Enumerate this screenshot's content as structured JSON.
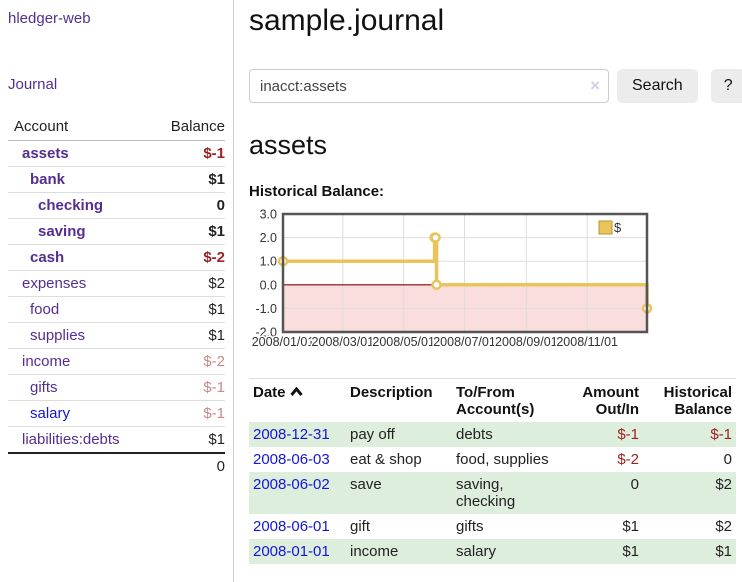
{
  "app": {
    "title": "hledger-web"
  },
  "sidebar": {
    "journal_link": "Journal",
    "accounts": {
      "account_header": "Account",
      "balance_header": "Balance",
      "rows": [
        {
          "name": "assets",
          "depth": 1,
          "balance": "$-1",
          "bold": true,
          "neg": "strong",
          "link": "purple"
        },
        {
          "name": "bank",
          "depth": 2,
          "balance": "$1",
          "bold": true,
          "neg": "none",
          "link": "purple"
        },
        {
          "name": "checking",
          "depth": 3,
          "balance": "0",
          "bold": true,
          "neg": "none",
          "link": "purple"
        },
        {
          "name": "saving",
          "depth": 3,
          "balance": "$1",
          "bold": true,
          "neg": "none",
          "link": "purple"
        },
        {
          "name": "cash",
          "depth": 2,
          "balance": "$-2",
          "bold": true,
          "neg": "strong",
          "link": "purple"
        },
        {
          "name": "expenses",
          "depth": 1,
          "balance": "$2",
          "bold": false,
          "neg": "none",
          "link": "purple"
        },
        {
          "name": "food",
          "depth": 2,
          "balance": "$1",
          "bold": false,
          "neg": "none",
          "link": "purple"
        },
        {
          "name": "supplies",
          "depth": 2,
          "balance": "$1",
          "bold": false,
          "neg": "none",
          "link": "purple"
        },
        {
          "name": "income",
          "depth": 1,
          "balance": "$-2",
          "bold": false,
          "neg": "muted",
          "link": "purple"
        },
        {
          "name": "gifts",
          "depth": 2,
          "balance": "$-1",
          "bold": false,
          "neg": "muted",
          "link": "purple"
        },
        {
          "name": "salary",
          "depth": 2,
          "balance": "$-1",
          "bold": false,
          "neg": "muted",
          "link": "blue"
        },
        {
          "name": "liabilities:debts",
          "depth": 1,
          "balance": "$1",
          "bold": false,
          "neg": "none",
          "link": "purple"
        }
      ],
      "total": "0"
    }
  },
  "header": {
    "title": "sample.journal"
  },
  "search": {
    "value": "inacct:assets",
    "clear_icon": "×",
    "button_label": "Search",
    "help_label": "?"
  },
  "main": {
    "account_title": "assets",
    "chart_label": "Historical Balance:"
  },
  "chart_data": {
    "type": "line",
    "step": true,
    "title": "Historical Balance",
    "legend": "$",
    "legend_position": "top-right",
    "series": [
      {
        "name": "$",
        "points": [
          [
            "2008-01-01",
            1
          ],
          [
            "2008-06-01",
            2
          ],
          [
            "2008-06-02",
            2
          ],
          [
            "2008-06-03",
            0
          ],
          [
            "2008-12-31",
            -1
          ]
        ]
      }
    ],
    "x_range": [
      "2008-01-01",
      "2008-12-31"
    ],
    "ylim": [
      -2,
      3
    ],
    "yticks": [
      "3.0",
      "2.0",
      "1.0",
      "0.0",
      "-1.0",
      "-2.0"
    ],
    "xticks": [
      "2008/01/01",
      "2008/03/01",
      "2008/05/01",
      "2008/07/01",
      "2008/09/01",
      "2008/11/01"
    ],
    "grid": true,
    "colors": {
      "line": "#e9c35b",
      "legend_border": "#b8962e",
      "marker_fill": "#ffffff",
      "negative_fill": "#fadddd",
      "zero_line": "#8b0000",
      "grid": "#dddddd",
      "frame": "#555555",
      "tick_text": "#333333"
    }
  },
  "register": {
    "columns": [
      "Date",
      "Description",
      "To/From Account(s)",
      "Amount Out/In",
      "Historical Balance"
    ],
    "rows": [
      {
        "date": "2008-12-31",
        "description": "pay off",
        "accounts": "debts",
        "amount": "$-1",
        "amount_neg": true,
        "balance": "$-1",
        "balance_neg": true
      },
      {
        "date": "2008-06-03",
        "description": "eat & shop",
        "accounts": "food, supplies",
        "amount": "$-2",
        "amount_neg": true,
        "balance": "0",
        "balance_neg": false
      },
      {
        "date": "2008-06-02",
        "description": "save",
        "accounts": "saving, checking",
        "amount": "0",
        "amount_neg": false,
        "balance": "$2",
        "balance_neg": false
      },
      {
        "date": "2008-06-01",
        "description": "gift",
        "accounts": "gifts",
        "amount": "$1",
        "amount_neg": false,
        "balance": "$2",
        "balance_neg": false
      },
      {
        "date": "2008-01-01",
        "description": "income",
        "accounts": "salary",
        "amount": "$1",
        "amount_neg": false,
        "balance": "$1",
        "balance_neg": false
      }
    ]
  }
}
